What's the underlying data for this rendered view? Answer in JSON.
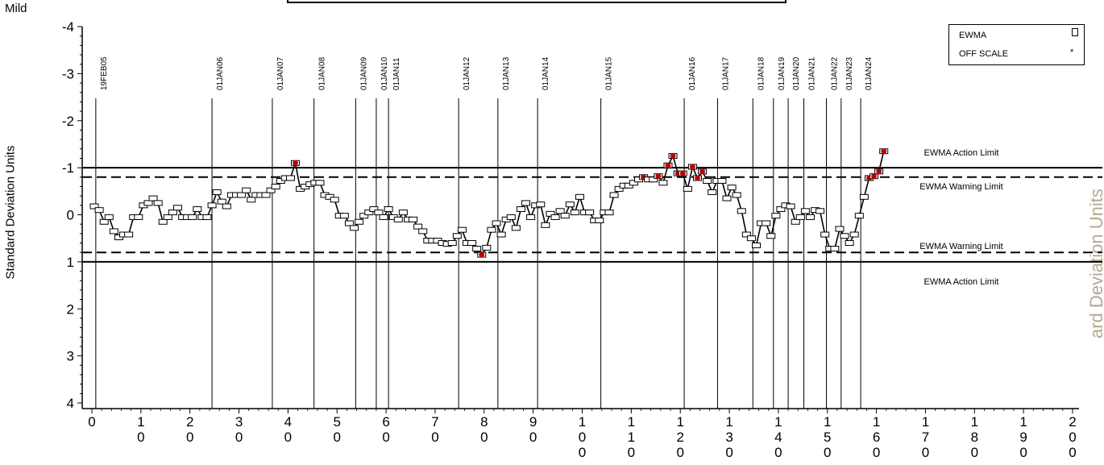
{
  "corner_label": "Mild",
  "y_axis_label": "Standard Deviation Units",
  "right_cut_label": "ard Deviation Units",
  "legend": {
    "ewma": "EWMA",
    "off_scale": "OFF SCALE",
    "off_scale_symbol": "*"
  },
  "limit_labels": {
    "upper_action": "EWMA Action Limit",
    "upper_warning": "EWMA Warning Limit",
    "lower_warning": "EWMA Warning Limit",
    "lower_action": "EWMA Action Limit"
  },
  "chart_data": {
    "type": "line",
    "y_inverted": true,
    "ylim": [
      -4,
      4
    ],
    "yticks": [
      "-4",
      "-3",
      "-2",
      "-1",
      "0",
      "1",
      "2",
      "3",
      "4"
    ],
    "xlim": [
      0,
      200
    ],
    "xticks": [
      {
        "value": 0,
        "label": "0"
      },
      {
        "value": 10,
        "label": "10"
      },
      {
        "value": 20,
        "label": "20"
      },
      {
        "value": 30,
        "label": "30"
      },
      {
        "value": 40,
        "label": "40"
      },
      {
        "value": 50,
        "label": "50"
      },
      {
        "value": 60,
        "label": "60"
      },
      {
        "value": 70,
        "label": "70"
      },
      {
        "value": 80,
        "label": "80"
      },
      {
        "value": 90,
        "label": "90"
      },
      {
        "value": 100,
        "label": "100"
      },
      {
        "value": 110,
        "label": "110"
      },
      {
        "value": 120,
        "label": "120"
      },
      {
        "value": 130,
        "label": "130"
      },
      {
        "value": 140,
        "label": "140"
      },
      {
        "value": 150,
        "label": "150"
      },
      {
        "value": 160,
        "label": "160"
      },
      {
        "value": 170,
        "label": "170"
      },
      {
        "value": 180,
        "label": "180"
      },
      {
        "value": 190,
        "label": "190"
      },
      {
        "value": 200,
        "label": "200"
      }
    ],
    "limits": {
      "upper_action": -1.0,
      "upper_warning": -0.8,
      "lower_warning": 0.8,
      "lower_action": 1.0
    },
    "period_markers": [
      {
        "x": 0.8,
        "label": "19FEB05"
      },
      {
        "x": 24.5,
        "label": "01JAN06"
      },
      {
        "x": 36.8,
        "label": "01JAN07"
      },
      {
        "x": 45.3,
        "label": "01JAN08"
      },
      {
        "x": 53.8,
        "label": "01JAN09"
      },
      {
        "x": 58.0,
        "label": "01JAN10"
      },
      {
        "x": 60.5,
        "label": "01JAN11"
      },
      {
        "x": 74.8,
        "label": "01JAN12"
      },
      {
        "x": 82.8,
        "label": "01JAN13"
      },
      {
        "x": 90.9,
        "label": "01JAN14"
      },
      {
        "x": 103.8,
        "label": "01JAN15"
      },
      {
        "x": 120.8,
        "label": "01JAN16"
      },
      {
        "x": 127.6,
        "label": "01JAN17"
      },
      {
        "x": 134.8,
        "label": "01JAN18"
      },
      {
        "x": 139.0,
        "label": "01JAN19"
      },
      {
        "x": 142.0,
        "label": "01JAN20"
      },
      {
        "x": 145.2,
        "label": "01JAN21"
      },
      {
        "x": 149.8,
        "label": "01JAN22"
      },
      {
        "x": 152.8,
        "label": "01JAN23"
      },
      {
        "x": 156.8,
        "label": "01JAN24"
      }
    ],
    "series": [
      {
        "values": [
          {
            "x": 0.5,
            "y": -0.18
          },
          {
            "x": 1.5,
            "y": -0.1
          },
          {
            "x": 2.5,
            "y": 0.15
          },
          {
            "x": 3.5,
            "y": 0.05
          },
          {
            "x": 4.5,
            "y": 0.35
          },
          {
            "x": 5.5,
            "y": 0.48
          },
          {
            "x": 6.5,
            "y": 0.42
          },
          {
            "x": 7.5,
            "y": 0.42
          },
          {
            "x": 8.5,
            "y": 0.05
          },
          {
            "x": 9.5,
            "y": 0.05
          },
          {
            "x": 10.5,
            "y": -0.2
          },
          {
            "x": 11.5,
            "y": -0.25
          },
          {
            "x": 12.5,
            "y": -0.35
          },
          {
            "x": 13.5,
            "y": -0.25
          },
          {
            "x": 14.5,
            "y": 0.15
          },
          {
            "x": 15.5,
            "y": 0.05
          },
          {
            "x": 16.5,
            "y": -0.05
          },
          {
            "x": 17.5,
            "y": -0.15
          },
          {
            "x": 18.5,
            "y": 0.05
          },
          {
            "x": 19.5,
            "y": 0.05
          },
          {
            "x": 20.5,
            "y": 0.05
          },
          {
            "x": 21.5,
            "y": -0.12
          },
          {
            "x": 22.5,
            "y": 0.05
          },
          {
            "x": 23.5,
            "y": 0.05
          },
          {
            "x": 24.5,
            "y": -0.2
          },
          {
            "x": 25.5,
            "y": -0.48
          },
          {
            "x": 26.5,
            "y": -0.28
          },
          {
            "x": 27.5,
            "y": -0.18
          },
          {
            "x": 28.5,
            "y": -0.42
          },
          {
            "x": 29.5,
            "y": -0.42
          },
          {
            "x": 30.5,
            "y": -0.42
          },
          {
            "x": 31.5,
            "y": -0.52
          },
          {
            "x": 32.5,
            "y": -0.32
          },
          {
            "x": 33.5,
            "y": -0.42
          },
          {
            "x": 34.5,
            "y": -0.42
          },
          {
            "x": 35.5,
            "y": -0.42
          },
          {
            "x": 36.5,
            "y": -0.52
          },
          {
            "x": 37.5,
            "y": -0.6
          },
          {
            "x": 38.5,
            "y": -0.72
          },
          {
            "x": 39.5,
            "y": -0.78
          },
          {
            "x": 40.5,
            "y": -0.78
          },
          {
            "x": 41.5,
            "y": -1.1,
            "off": true
          },
          {
            "x": 42.5,
            "y": -0.55
          },
          {
            "x": 43.5,
            "y": -0.6
          },
          {
            "x": 44.5,
            "y": -0.65
          },
          {
            "x": 45.5,
            "y": -0.68
          },
          {
            "x": 46.5,
            "y": -0.68
          },
          {
            "x": 47.5,
            "y": -0.42
          },
          {
            "x": 48.5,
            "y": -0.38
          },
          {
            "x": 49.5,
            "y": -0.32
          },
          {
            "x": 50.5,
            "y": 0.02
          },
          {
            "x": 51.5,
            "y": 0.02
          },
          {
            "x": 52.5,
            "y": 0.18
          },
          {
            "x": 53.5,
            "y": 0.28
          },
          {
            "x": 54.5,
            "y": 0.15
          },
          {
            "x": 55.5,
            "y": 0.02
          },
          {
            "x": 56.5,
            "y": -0.05
          },
          {
            "x": 57.5,
            "y": -0.12
          },
          {
            "x": 58.5,
            "y": -0.05
          },
          {
            "x": 59.5,
            "y": 0.05
          },
          {
            "x": 60.5,
            "y": -0.12
          },
          {
            "x": 61.5,
            "y": 0.05
          },
          {
            "x": 62.5,
            "y": 0.1
          },
          {
            "x": 63.5,
            "y": -0.05
          },
          {
            "x": 64.5,
            "y": 0.1
          },
          {
            "x": 65.5,
            "y": 0.1
          },
          {
            "x": 66.5,
            "y": 0.25
          },
          {
            "x": 67.5,
            "y": 0.35
          },
          {
            "x": 68.5,
            "y": 0.55
          },
          {
            "x": 69.5,
            "y": 0.55
          },
          {
            "x": 70.5,
            "y": 0.55
          },
          {
            "x": 71.5,
            "y": 0.6
          },
          {
            "x": 72.5,
            "y": 0.62
          },
          {
            "x": 73.5,
            "y": 0.6
          },
          {
            "x": 74.5,
            "y": 0.45
          },
          {
            "x": 75.5,
            "y": 0.32
          },
          {
            "x": 76.5,
            "y": 0.6
          },
          {
            "x": 77.5,
            "y": 0.6
          },
          {
            "x": 78.5,
            "y": 0.72
          },
          {
            "x": 79.5,
            "y": 0.85,
            "off": true
          },
          {
            "x": 80.5,
            "y": 0.7
          },
          {
            "x": 81.5,
            "y": 0.32
          },
          {
            "x": 82.5,
            "y": 0.18
          },
          {
            "x": 83.5,
            "y": 0.42
          },
          {
            "x": 84.5,
            "y": 0.1
          },
          {
            "x": 85.5,
            "y": 0.05
          },
          {
            "x": 86.5,
            "y": 0.28
          },
          {
            "x": 87.5,
            "y": -0.12
          },
          {
            "x": 88.5,
            "y": -0.25
          },
          {
            "x": 89.5,
            "y": 0.05
          },
          {
            "x": 90.5,
            "y": -0.2
          },
          {
            "x": 91.5,
            "y": -0.22
          },
          {
            "x": 92.5,
            "y": 0.22
          },
          {
            "x": 93.5,
            "y": -0.02
          },
          {
            "x": 94.5,
            "y": 0.05
          },
          {
            "x": 95.5,
            "y": -0.08
          },
          {
            "x": 96.5,
            "y": 0.02
          },
          {
            "x": 97.5,
            "y": -0.22
          },
          {
            "x": 98.5,
            "y": -0.05
          },
          {
            "x": 99.5,
            "y": -0.38
          },
          {
            "x": 100.5,
            "y": -0.05
          },
          {
            "x": 101.5,
            "y": -0.05
          },
          {
            "x": 102.5,
            "y": 0.12
          },
          {
            "x": 103.5,
            "y": 0.12
          },
          {
            "x": 104.5,
            "y": -0.05
          },
          {
            "x": 105.5,
            "y": -0.05
          },
          {
            "x": 106.5,
            "y": -0.42
          },
          {
            "x": 107.5,
            "y": -0.55
          },
          {
            "x": 108.5,
            "y": -0.62
          },
          {
            "x": 109.5,
            "y": -0.62
          },
          {
            "x": 110.5,
            "y": -0.68
          },
          {
            "x": 111.5,
            "y": -0.75
          },
          {
            "x": 112.5,
            "y": -0.8,
            "off": true
          },
          {
            "x": 113.5,
            "y": -0.75
          },
          {
            "x": 114.5,
            "y": -0.75
          },
          {
            "x": 115.5,
            "y": -0.82,
            "off": true
          },
          {
            "x": 116.5,
            "y": -0.68
          },
          {
            "x": 117.5,
            "y": -1.05,
            "off": true
          },
          {
            "x": 118.5,
            "y": -1.25,
            "off": true
          },
          {
            "x": 119.5,
            "y": -0.88,
            "off": true
          },
          {
            "x": 120.5,
            "y": -0.88,
            "off": true
          },
          {
            "x": 121.5,
            "y": -0.55
          },
          {
            "x": 122.5,
            "y": -1.02,
            "off": true
          },
          {
            "x": 123.5,
            "y": -0.78,
            "off": true
          },
          {
            "x": 124.5,
            "y": -0.92,
            "off": true
          },
          {
            "x": 125.5,
            "y": -0.72
          },
          {
            "x": 126.5,
            "y": -0.48
          },
          {
            "x": 127.5,
            "y": -0.72
          },
          {
            "x": 128.5,
            "y": -0.72
          },
          {
            "x": 129.5,
            "y": -0.35
          },
          {
            "x": 130.5,
            "y": -0.58
          },
          {
            "x": 131.5,
            "y": -0.42
          },
          {
            "x": 132.5,
            "y": -0.08
          },
          {
            "x": 133.5,
            "y": 0.42
          },
          {
            "x": 134.5,
            "y": 0.5
          },
          {
            "x": 135.5,
            "y": 0.65
          },
          {
            "x": 136.5,
            "y": 0.18
          },
          {
            "x": 137.5,
            "y": 0.18
          },
          {
            "x": 138.5,
            "y": 0.45
          },
          {
            "x": 139.5,
            "y": 0.02
          },
          {
            "x": 140.5,
            "y": -0.12
          },
          {
            "x": 141.5,
            "y": -0.2
          },
          {
            "x": 142.5,
            "y": -0.18
          },
          {
            "x": 143.5,
            "y": 0.15
          },
          {
            "x": 144.5,
            "y": 0.05
          },
          {
            "x": 145.5,
            "y": -0.08
          },
          {
            "x": 146.5,
            "y": 0.05
          },
          {
            "x": 147.5,
            "y": -0.1
          },
          {
            "x": 148.5,
            "y": -0.08
          },
          {
            "x": 149.5,
            "y": 0.42
          },
          {
            "x": 150.5,
            "y": 0.72
          },
          {
            "x": 151.5,
            "y": 0.72
          },
          {
            "x": 152.5,
            "y": 0.3
          },
          {
            "x": 153.5,
            "y": 0.45
          },
          {
            "x": 154.5,
            "y": 0.6
          },
          {
            "x": 155.5,
            "y": 0.42
          },
          {
            "x": 156.5,
            "y": 0.02
          },
          {
            "x": 157.5,
            "y": -0.38
          },
          {
            "x": 158.5,
            "y": -0.78,
            "off": true
          },
          {
            "x": 159.5,
            "y": -0.82,
            "off": true
          },
          {
            "x": 160.5,
            "y": -0.92,
            "off": true
          },
          {
            "x": 161.5,
            "y": -1.35,
            "off": true
          }
        ]
      }
    ],
    "colors": {
      "line": "#000000",
      "off_scale": "#c00000"
    }
  }
}
